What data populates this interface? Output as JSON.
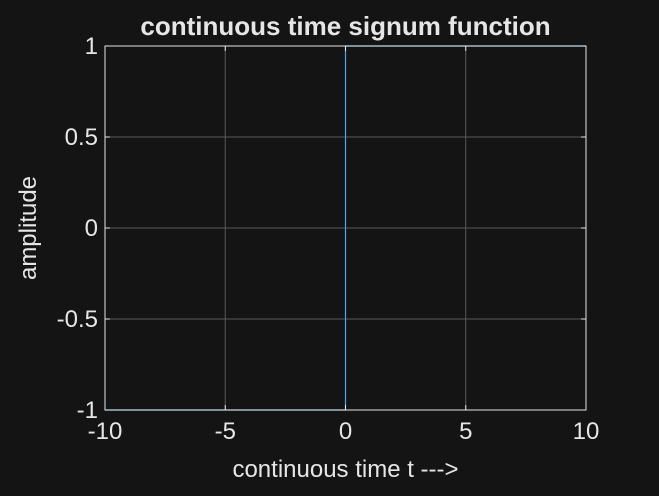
{
  "chart_data": {
    "type": "line",
    "title": "continuous time signum function",
    "xlabel": "continuous time t --->",
    "ylabel": "amplitude",
    "xlim": [
      -10,
      10
    ],
    "ylim": [
      -1,
      1
    ],
    "xticks": [
      -10,
      -5,
      0,
      5,
      10
    ],
    "xtick_labels": [
      "-10",
      "-5",
      "0",
      "5",
      "10"
    ],
    "yticks": [
      -1,
      -0.5,
      0,
      0.5,
      1
    ],
    "ytick_labels": [
      "-1",
      "-0.5",
      "0",
      "0.5",
      "1"
    ],
    "grid": true,
    "series": [
      {
        "color": "#4da6e8",
        "x": [
          -10,
          0,
          0,
          10
        ],
        "y": [
          -1,
          -1,
          1,
          1
        ]
      }
    ]
  },
  "colors": {
    "background": "#141414",
    "axes_background": "#141414",
    "axes": "#e6e6e6",
    "grid": "#5a5a5a",
    "text": "#e6e6e6",
    "series": "#4da6e8"
  }
}
